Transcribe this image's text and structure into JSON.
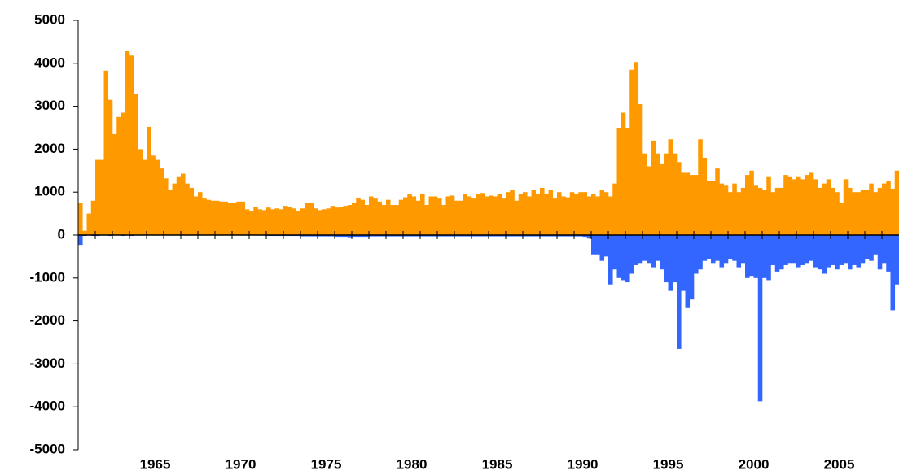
{
  "chart_data": {
    "type": "bar",
    "categories": [
      null,
      null,
      null,
      null,
      null,
      null,
      null,
      null,
      null,
      null,
      null,
      null,
      null,
      null,
      null,
      null,
      null,
      null,
      "1965",
      null,
      null,
      null,
      null,
      null,
      null,
      null,
      null,
      null,
      null,
      null,
      null,
      null,
      null,
      null,
      null,
      null,
      null,
      null,
      "1970",
      null,
      null,
      null,
      null,
      null,
      null,
      null,
      null,
      null,
      null,
      null,
      null,
      null,
      null,
      null,
      null,
      null,
      null,
      null,
      "1975",
      null,
      null,
      null,
      null,
      null,
      null,
      null,
      null,
      null,
      null,
      null,
      null,
      null,
      null,
      null,
      null,
      null,
      null,
      null,
      "1980",
      null,
      null,
      null,
      null,
      null,
      null,
      null,
      null,
      null,
      null,
      null,
      null,
      null,
      null,
      null,
      null,
      null,
      null,
      null,
      "1985",
      null,
      null,
      null,
      null,
      null,
      null,
      null,
      null,
      null,
      null,
      null,
      null,
      null,
      null,
      null,
      null,
      null,
      null,
      null,
      "1990",
      null,
      null,
      null,
      null,
      null,
      null,
      null,
      null,
      null,
      null,
      null,
      null,
      null,
      null,
      null,
      null,
      null,
      null,
      null,
      "1995",
      null,
      null,
      null,
      null,
      null,
      null,
      null,
      null,
      null,
      null,
      null,
      null,
      null,
      null,
      null,
      null,
      null,
      null,
      null,
      "2000",
      null,
      null,
      null,
      null,
      null,
      null,
      null,
      null,
      null,
      null,
      null,
      null,
      null,
      null,
      null,
      null,
      null,
      null,
      null,
      "2005",
      null,
      null,
      null,
      null,
      null,
      null,
      null,
      null,
      null,
      null,
      null,
      null,
      null
    ],
    "series": [
      {
        "color": "#ff9900",
        "values": [
          750,
          100,
          500,
          800,
          1750,
          1750,
          3830,
          3150,
          2350,
          2750,
          2850,
          4280,
          4180,
          3280,
          2000,
          1750,
          2520,
          1850,
          1750,
          1550,
          1320,
          1050,
          1200,
          1350,
          1430,
          1200,
          1100,
          900,
          1000,
          850,
          820,
          800,
          800,
          780,
          780,
          750,
          740,
          780,
          780,
          600,
          550,
          650,
          600,
          580,
          640,
          600,
          620,
          600,
          680,
          650,
          620,
          550,
          620,
          750,
          740,
          620,
          580,
          600,
          620,
          680,
          640,
          650,
          680,
          700,
          750,
          860,
          820,
          700,
          900,
          850,
          780,
          700,
          820,
          700,
          700,
          820,
          880,
          950,
          900,
          800,
          950,
          700,
          900,
          900,
          850,
          700,
          900,
          920,
          800,
          800,
          950,
          900,
          850,
          950,
          980,
          900,
          920,
          900,
          950,
          850,
          1000,
          1050,
          800,
          950,
          1000,
          900,
          1050,
          950,
          1100,
          950,
          1050,
          850,
          1000,
          900,
          880,
          1000,
          950,
          1000,
          1000,
          900,
          950,
          900,
          1050,
          1000,
          900,
          1200,
          2500,
          2850,
          2500,
          3850,
          4030,
          3050,
          1900,
          1600,
          2200,
          1900,
          1650,
          1900,
          2230,
          1900,
          1700,
          1450,
          1450,
          1400,
          1400,
          2230,
          1800,
          1250,
          1250,
          1550,
          1200,
          1150,
          1000,
          1200,
          1000,
          1100,
          1400,
          1500,
          1150,
          1100,
          1050,
          1350,
          1000,
          1100,
          1100,
          1400,
          1350,
          1300,
          1350,
          1300,
          1400,
          1450,
          1300,
          1100,
          1200,
          1300,
          1100,
          1000,
          750,
          1300,
          1100,
          1000,
          1000,
          1050,
          1050,
          1200,
          1000,
          1100,
          1200,
          1250,
          1080,
          1500
        ]
      },
      {
        "color": "#3366ff",
        "values": [
          -230,
          -20,
          -10,
          -20,
          -20,
          -10,
          -10,
          -20,
          -10,
          -10,
          -20,
          -10,
          -20,
          -10,
          -10,
          -10,
          -10,
          -10,
          -10,
          -10,
          -10,
          -10,
          -10,
          -10,
          -10,
          -10,
          -10,
          -10,
          -10,
          -10,
          -10,
          -10,
          -10,
          -10,
          -10,
          -10,
          -10,
          -10,
          -10,
          -10,
          -10,
          -10,
          -10,
          -10,
          -20,
          -20,
          -20,
          -20,
          -20,
          -20,
          -20,
          -20,
          -30,
          -30,
          -30,
          -30,
          -30,
          -30,
          -30,
          -30,
          -40,
          -40,
          -40,
          -50,
          -40,
          -40,
          -40,
          -40,
          -30,
          -30,
          -30,
          -30,
          -30,
          -30,
          -30,
          -30,
          -30,
          -30,
          -30,
          -30,
          -30,
          -30,
          -30,
          -30,
          -30,
          -30,
          -30,
          -30,
          -30,
          -30,
          -30,
          -30,
          -30,
          -30,
          -30,
          -30,
          -30,
          -30,
          -30,
          -30,
          -30,
          -30,
          -30,
          -30,
          -30,
          -30,
          -30,
          -30,
          -30,
          -30,
          -30,
          -30,
          -30,
          -30,
          -30,
          -30,
          -30,
          -30,
          -40,
          -80,
          -450,
          -450,
          -600,
          -500,
          -1150,
          -800,
          -1000,
          -1050,
          -1100,
          -900,
          -700,
          -650,
          -600,
          -650,
          -750,
          -600,
          -800,
          -1100,
          -1300,
          -1100,
          -2650,
          -1300,
          -1700,
          -1500,
          -900,
          -800,
          -600,
          -550,
          -650,
          -600,
          -750,
          -650,
          -550,
          -600,
          -750,
          -650,
          -1000,
          -950,
          -1000,
          -3870,
          -1000,
          -1050,
          -700,
          -850,
          -800,
          -700,
          -650,
          -650,
          -750,
          -700,
          -650,
          -600,
          -750,
          -800,
          -900,
          -750,
          -700,
          -800,
          -700,
          -650,
          -800,
          -700,
          -750,
          -650,
          -550,
          -600,
          -450,
          -800,
          -650,
          -850,
          -1750,
          -1150
        ]
      }
    ],
    "ylim": [
      -5000,
      5000
    ],
    "yticks": [
      -5000,
      -4000,
      -3000,
      -2000,
      -1000,
      0,
      1000,
      2000,
      3000,
      4000,
      5000
    ]
  }
}
